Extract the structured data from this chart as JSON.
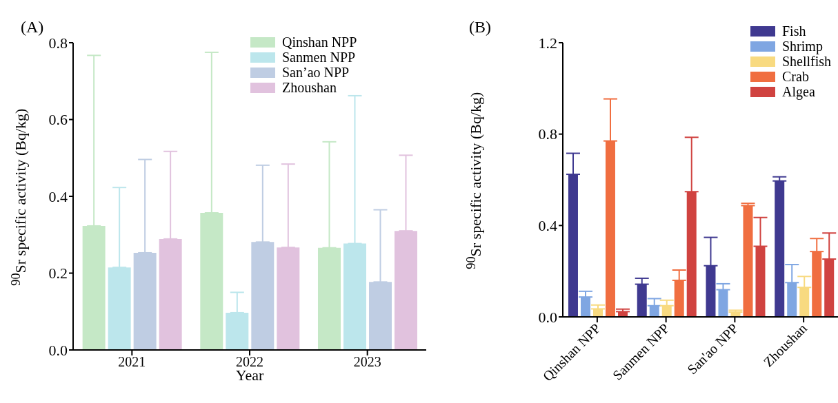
{
  "chart_data": [
    {
      "type": "bar",
      "title": "(A)",
      "xlabel": "Year",
      "ylabel": "$^{90}$Sr specific activity (Bq/kg)",
      "categories": [
        "2021",
        "2022",
        "2023"
      ],
      "series": [
        {
          "name": "Qinshan NPP",
          "color": "#c5e8c6",
          "values": [
            0.323,
            0.357,
            0.266
          ],
          "errors": [
            [
              0.323,
              0.767
            ],
            [
              0.357,
              0.775
            ],
            [
              0.266,
              0.542
            ]
          ]
        },
        {
          "name": "Sanmen NPP",
          "color": "#bce6ec",
          "values": [
            0.215,
            0.097,
            0.277
          ],
          "errors": [
            [
              0.215,
              0.423
            ],
            [
              0.097,
              0.15
            ],
            [
              0.277,
              0.662
            ]
          ]
        },
        {
          "name": "San’ao NPP",
          "color": "#bfcde3",
          "values": [
            0.253,
            0.281,
            0.177
          ],
          "errors": [
            [
              0.253,
              0.496
            ],
            [
              0.281,
              0.481
            ],
            [
              0.177,
              0.365
            ]
          ]
        },
        {
          "name": "Zhoushan",
          "color": "#e1c2de",
          "values": [
            0.289,
            0.267,
            0.31
          ],
          "errors": [
            [
              0.289,
              0.517
            ],
            [
              0.267,
              0.484
            ],
            [
              0.31,
              0.507
            ]
          ]
        }
      ],
      "ylim": [
        0,
        0.8
      ],
      "yticks": [
        {
          "value": 0,
          "label": "0.0"
        },
        0.2,
        0.4,
        0.6,
        0.8
      ],
      "legend": "top right"
    },
    {
      "type": "bar",
      "title": "(B)",
      "ylabel": "$^{90}$Sr specific activity (Bq/kg)",
      "categories": [
        "Qinshan NPP",
        "Sanmen NPP",
        "San'ao NPP",
        "Zhoushan"
      ],
      "series": [
        {
          "name": "Fish",
          "color": "#3f3990",
          "values": [
            0.624,
            0.143,
            0.224,
            0.595
          ],
          "errors": [
            [
              0.624,
              0.716
            ],
            [
              0.143,
              0.169
            ],
            [
              0.224,
              0.348
            ],
            [
              0.595,
              0.613
            ]
          ]
        },
        {
          "name": "Shrimp",
          "color": "#7fa6e2",
          "values": [
            0.087,
            0.049,
            0.119,
            0.15
          ],
          "errors": [
            [
              0.087,
              0.112
            ],
            [
              0.049,
              0.08
            ],
            [
              0.119,
              0.145
            ],
            [
              0.15,
              0.229
            ]
          ]
        },
        {
          "name": "Shellfish",
          "color": "#f8da80",
          "values": [
            0.035,
            0.049,
            0.021,
            0.129
          ],
          "errors": [
            [
              0.035,
              0.052
            ],
            [
              0.049,
              0.073
            ],
            [
              0.021,
              0.029
            ],
            [
              0.129,
              0.177
            ]
          ]
        },
        {
          "name": "Crab",
          "color": "#f06e40",
          "values": [
            0.77,
            0.16,
            0.487,
            0.286
          ],
          "errors": [
            [
              0.77,
              0.954
            ],
            [
              0.16,
              0.205
            ],
            [
              0.487,
              0.497
            ],
            [
              0.286,
              0.343
            ]
          ]
        },
        {
          "name": "Algea",
          "color": "#d04340",
          "values": [
            0.023,
            0.548,
            0.309,
            0.253
          ],
          "errors": [
            [
              0.023,
              0.034
            ],
            [
              0.548,
              0.786
            ],
            [
              0.309,
              0.435
            ],
            [
              0.253,
              0.367
            ]
          ]
        }
      ],
      "ylim": [
        0,
        1.2
      ],
      "yticks": [
        {
          "value": 0,
          "label": "0.0"
        },
        0.4,
        0.8,
        1.2
      ],
      "legend": "top right"
    }
  ]
}
